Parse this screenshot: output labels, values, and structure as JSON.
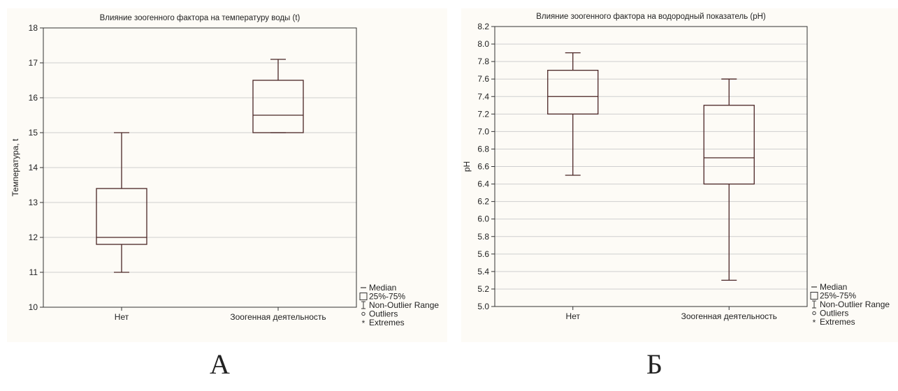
{
  "chart_data": [
    {
      "type": "box",
      "title": "Влияние зоогенного фактора на температуру воды (t)",
      "xlabel": "",
      "ylabel": "Температура, t",
      "ylim": [
        10,
        18
      ],
      "yticks": [
        10,
        11,
        12,
        13,
        14,
        15,
        16,
        17,
        18
      ],
      "grid": true,
      "legend_placement": "bottom-right, outside plot",
      "categories": [
        "Нет",
        "Зоогенная деятельность"
      ],
      "boxes": [
        {
          "category": "Нет",
          "whisker_low": 11.0,
          "q1": 11.8,
          "median": 12.0,
          "q3": 13.4,
          "whisker_high": 15.0
        },
        {
          "category": "Зоогенная деятельность",
          "whisker_low": 15.0,
          "q1": 15.0,
          "median": 15.5,
          "q3": 16.5,
          "whisker_high": 17.1
        }
      ]
    },
    {
      "type": "box",
      "title": "Влияние зоогенного фактора на водородный показатель (pH)",
      "xlabel": "",
      "ylabel": "pH",
      "ylim": [
        5.0,
        8.2
      ],
      "yticks": [
        "5.0",
        "5.2",
        "5.4",
        "5.6",
        "5.8",
        "6.0",
        "6.2",
        "6.4",
        "6.6",
        "6.8",
        "7.0",
        "7.2",
        "7.4",
        "7.6",
        "7.8",
        "8.0",
        "8.2"
      ],
      "grid": true,
      "legend_placement": "bottom-right, outside plot",
      "categories": [
        "Нет",
        "Зоогенная деятельность"
      ],
      "boxes": [
        {
          "category": "Нет",
          "whisker_low": 6.5,
          "q1": 7.2,
          "median": 7.4,
          "q3": 7.7,
          "whisker_high": 7.9
        },
        {
          "category": "Зоогенная деятельность",
          "whisker_low": 5.3,
          "q1": 6.4,
          "median": 6.7,
          "q3": 7.3,
          "whisker_high": 7.6
        }
      ]
    }
  ],
  "legend": {
    "items": [
      "Median",
      "25%-75%",
      "Non-Outlier Range",
      "Outliers",
      "Extremes"
    ]
  },
  "panel_labels": [
    "А",
    "Б"
  ],
  "colors": {
    "box": "#4a2525",
    "grid": "#cfcfcf",
    "background": "#fdfbf6",
    "text": "#222222"
  }
}
